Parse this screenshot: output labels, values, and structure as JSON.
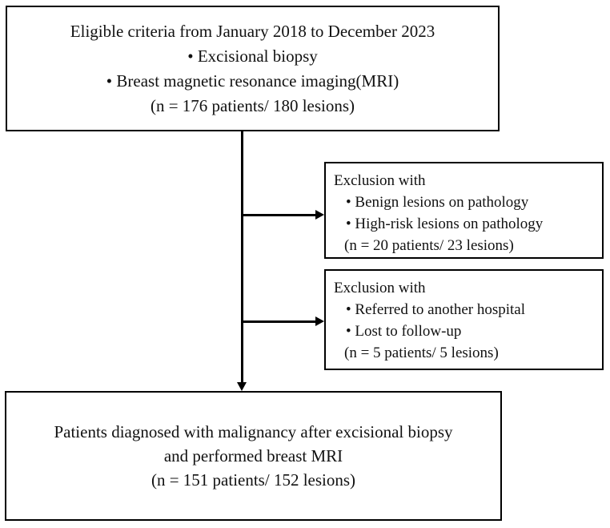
{
  "flowchart": {
    "eligible_box": {
      "title": "Eligible criteria from January 2018 to December 2023",
      "bullet1": "• Excisional biopsy",
      "bullet2": "• Breast magnetic resonance imaging(MRI)",
      "count": "(n = 176 patients/ 180 lesions)"
    },
    "exclusion_box_1": {
      "title": "Exclusion with",
      "bullet1": "• Benign lesions on pathology",
      "bullet2": "• High-risk lesions on pathology",
      "count": "(n = 20 patients/ 23 lesions)"
    },
    "exclusion_box_2": {
      "title": "Exclusion with",
      "bullet1": "• Referred to another hospital",
      "bullet2": "• Lost to follow-up",
      "count": "(n = 5 patients/ 5 lesions)"
    },
    "final_box": {
      "line1": "Patients diagnosed with malignancy after excisional biopsy",
      "line2": "and performed breast MRI",
      "count": "(n = 151 patients/ 152 lesions)"
    },
    "colors": {
      "border": "#000000",
      "background": "#ffffff",
      "text": "#111111"
    }
  }
}
